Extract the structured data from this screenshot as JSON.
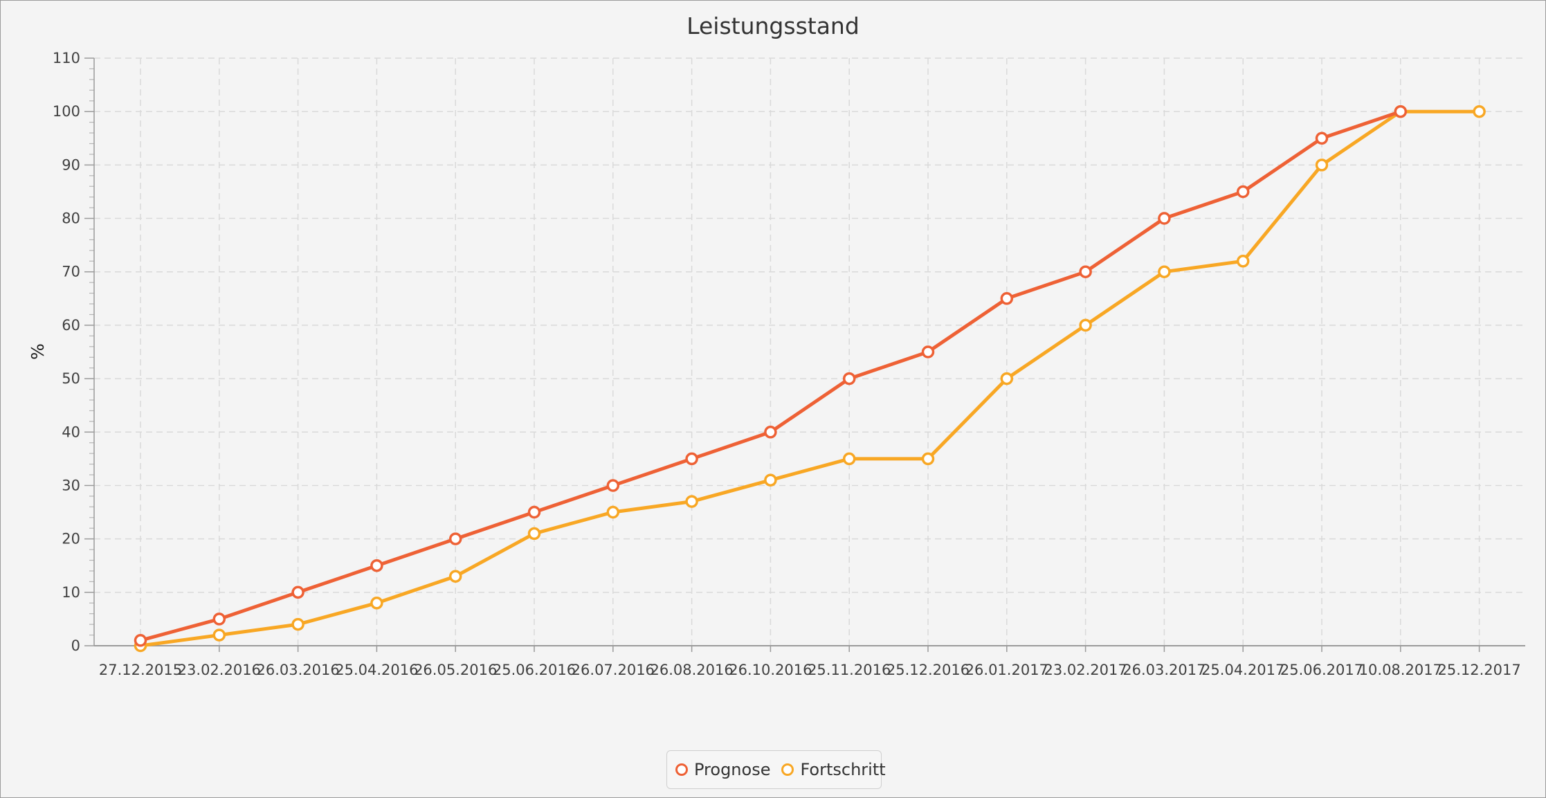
{
  "chart_data": {
    "type": "line",
    "title": "Leistungsstand",
    "xlabel": "",
    "ylabel": "%",
    "ylim": [
      0,
      110
    ],
    "y_ticks": [
      0,
      10,
      20,
      30,
      40,
      50,
      60,
      70,
      80,
      90,
      100,
      110
    ],
    "y_minor_ticks_per_major": 5,
    "grid": true,
    "legend_position": "bottom-center",
    "categories": [
      "27.12.2015",
      "23.02.2016",
      "26.03.2016",
      "25.04.2016",
      "26.05.2016",
      "25.06.2016",
      "26.07.2016",
      "26.08.2016",
      "26.10.2016",
      "25.11.2016",
      "25.12.2016",
      "26.01.2017",
      "23.02.2017",
      "26.03.2017",
      "25.04.2017",
      "25.06.2017",
      "10.08.2017",
      "25.12.2017"
    ],
    "series": [
      {
        "name": "Prognose",
        "color": "#ee6135",
        "values": [
          1,
          5,
          10,
          15,
          20,
          25,
          30,
          35,
          40,
          50,
          55,
          65,
          70,
          80,
          85,
          95,
          100,
          null
        ]
      },
      {
        "name": "Fortschritt",
        "color": "#f8a724",
        "values": [
          0,
          2,
          4,
          8,
          13,
          21,
          25,
          27,
          31,
          35,
          35,
          50,
          60,
          70,
          72,
          90,
          100,
          100
        ]
      }
    ]
  }
}
